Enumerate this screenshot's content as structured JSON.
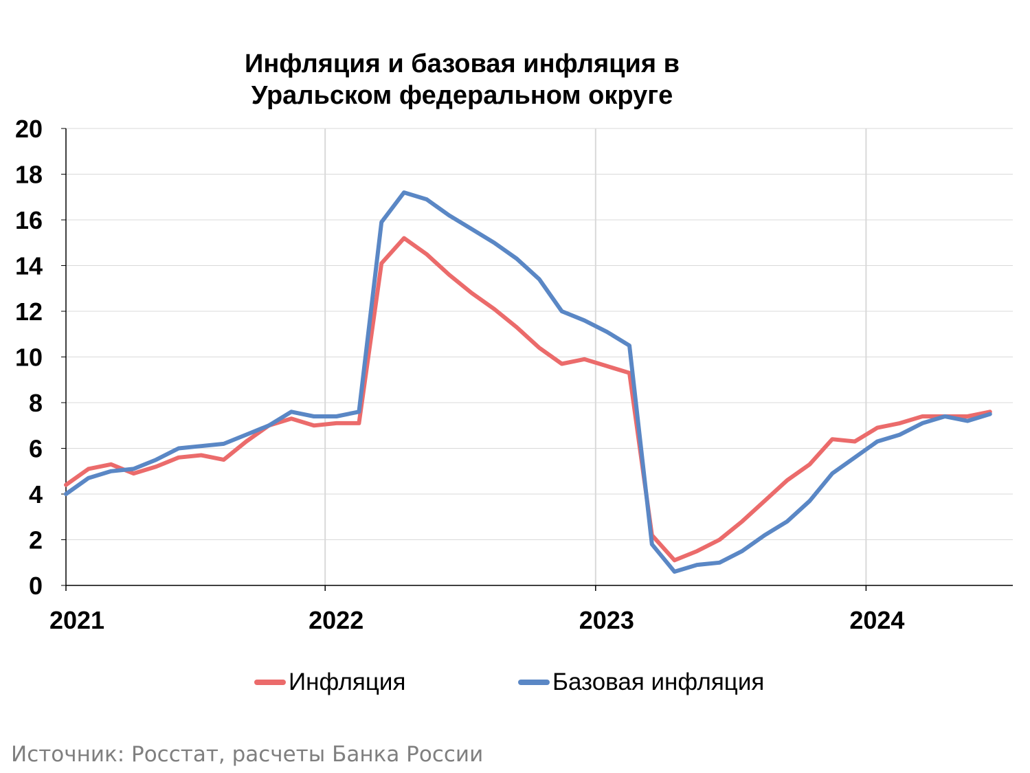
{
  "chart_data": {
    "type": "line",
    "title": [
      "Инфляция и базовая инфляция в",
      "Уральском федеральном округе"
    ],
    "xlabel": "",
    "ylabel": "",
    "ylim": [
      0,
      20
    ],
    "yticks": [
      "0",
      "2",
      "4",
      "6",
      "8",
      "10",
      "12",
      "14",
      "16",
      "18",
      "20"
    ],
    "xticks": [
      "2021",
      "2022",
      "2023",
      "2024"
    ],
    "x": [
      "2021-01",
      "2021-02",
      "2021-03",
      "2021-04",
      "2021-05",
      "2021-06",
      "2021-07",
      "2021-08",
      "2021-09",
      "2021-10",
      "2021-11",
      "2021-12",
      "2022-01",
      "2022-02",
      "2022-03",
      "2022-04",
      "2022-05",
      "2022-06",
      "2022-07",
      "2022-08",
      "2022-09",
      "2022-10",
      "2022-11",
      "2022-12",
      "2023-01",
      "2023-02",
      "2023-03",
      "2023-04",
      "2023-05",
      "2023-06",
      "2023-07",
      "2023-08",
      "2023-09",
      "2023-10",
      "2023-11",
      "2023-12",
      "2024-01",
      "2024-02",
      "2024-03",
      "2024-04",
      "2024-05",
      "2024-06"
    ],
    "grid": true,
    "legend_position": "bottom",
    "series": [
      {
        "name": "Инфляция",
        "color": "#eb6b6b",
        "values": [
          4.4,
          5.1,
          5.3,
          4.9,
          5.2,
          5.6,
          5.7,
          5.5,
          6.3,
          7.0,
          7.3,
          7.0,
          7.1,
          7.1,
          14.1,
          15.2,
          14.5,
          13.6,
          12.8,
          12.1,
          11.3,
          10.4,
          9.7,
          9.9,
          9.6,
          9.3,
          2.2,
          1.1,
          1.5,
          2.0,
          2.8,
          3.7,
          4.6,
          5.3,
          6.4,
          6.3,
          6.9,
          7.1,
          7.4,
          7.4,
          7.4,
          7.6
        ]
      },
      {
        "name": "Базовая инфляция",
        "color": "#5a87c5",
        "values": [
          4.0,
          4.7,
          5.0,
          5.1,
          5.5,
          6.0,
          6.1,
          6.2,
          6.6,
          7.0,
          7.6,
          7.4,
          7.4,
          7.6,
          15.9,
          17.2,
          16.9,
          16.2,
          15.6,
          15.0,
          14.3,
          13.4,
          12.0,
          11.6,
          11.1,
          10.5,
          1.8,
          0.6,
          0.9,
          1.0,
          1.5,
          2.2,
          2.8,
          3.7,
          4.9,
          5.6,
          6.3,
          6.6,
          7.1,
          7.4,
          7.2,
          7.5
        ]
      }
    ]
  },
  "source": "Источник: Росстат, расчеты Банка России"
}
